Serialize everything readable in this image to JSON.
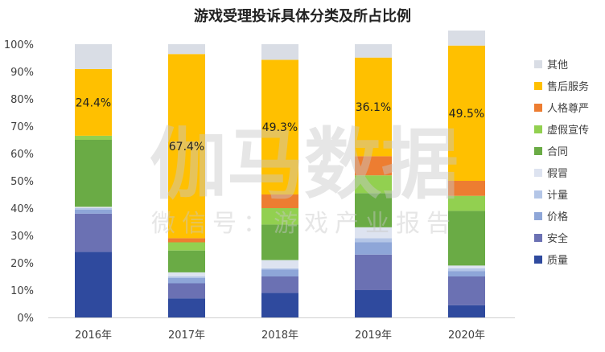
{
  "chart_data": {
    "type": "bar",
    "stacked": true,
    "title": "游戏受理投诉具体分类及所占比例",
    "categories": [
      "2016年",
      "2017年",
      "2018年",
      "2019年",
      "2020年"
    ],
    "ylim": [
      0,
      100
    ],
    "yticks": [
      "0%",
      "10%",
      "20%",
      "30%",
      "40%",
      "50%",
      "60%",
      "70%",
      "80%",
      "90%",
      "100%"
    ],
    "legend_position": "right",
    "grid": false,
    "series": [
      {
        "name": "质量",
        "color": "#2f4a9e",
        "values": [
          24.0,
          7.0,
          9.0,
          10.0,
          4.5
        ]
      },
      {
        "name": "安全",
        "color": "#6b71b3",
        "values": [
          14.0,
          5.5,
          6.0,
          13.0,
          10.5
        ]
      },
      {
        "name": "价格",
        "color": "#8ea6d8",
        "values": [
          1.5,
          2.0,
          2.5,
          4.5,
          2.0
        ]
      },
      {
        "name": "计量",
        "color": "#b4c6e7",
        "values": [
          0.5,
          0.5,
          0.5,
          1.5,
          1.0
        ]
      },
      {
        "name": "假冒",
        "color": "#dde3f0",
        "values": [
          0.5,
          1.5,
          3.0,
          4.0,
          1.0
        ]
      },
      {
        "name": "合同",
        "color": "#6aab45",
        "values": [
          24.5,
          8.0,
          13.0,
          12.5,
          20.0
        ]
      },
      {
        "name": "虚假宣传",
        "color": "#92d050",
        "values": [
          1.5,
          3.0,
          6.0,
          6.5,
          5.5
        ]
      },
      {
        "name": "人格尊严",
        "color": "#ed7d31",
        "values": [
          0.0,
          1.5,
          5.0,
          7.0,
          5.5
        ]
      },
      {
        "name": "售后服务",
        "color": "#ffc000",
        "values": [
          24.4,
          67.4,
          49.3,
          36.1,
          49.5
        ]
      },
      {
        "name": "其他",
        "color": "#d9dde5",
        "values": [
          9.1,
          3.6,
          5.7,
          4.9,
          5.5
        ]
      }
    ],
    "data_labels": [
      {
        "series": "售后服务",
        "category": "2016年",
        "text": "24.4%"
      },
      {
        "series": "售后服务",
        "category": "2017年",
        "text": "67.4%"
      },
      {
        "series": "售后服务",
        "category": "2018年",
        "text": "49.3%"
      },
      {
        "series": "售后服务",
        "category": "2019年",
        "text": "36.1%"
      },
      {
        "series": "售后服务",
        "category": "2020年",
        "text": "49.5%"
      }
    ]
  },
  "watermark": {
    "main": "伽马数据",
    "sub": "微信号：游戏产业报告"
  }
}
